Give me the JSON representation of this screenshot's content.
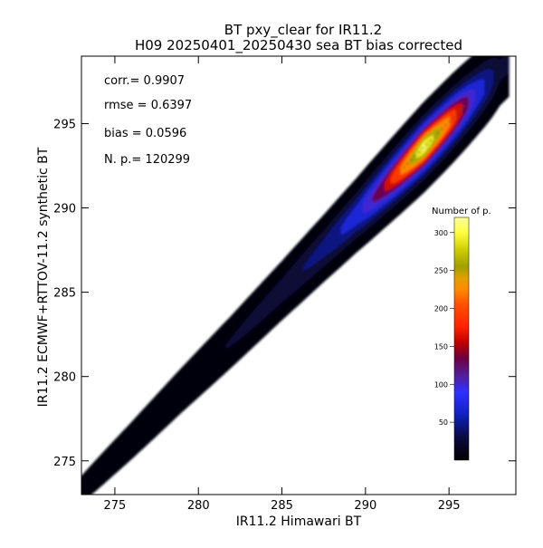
{
  "chart_data": {
    "type": "heatmap",
    "title": "BT pxy_clear for IR11.2",
    "subtitle": "H09 20250401_20250430 sea BT bias corrected",
    "xlabel": "IR11.2 Himawari BT",
    "ylabel": "IR11.2 ECMWF+RTTOV-11.2 synthetic BT",
    "xlim": [
      273,
      299
    ],
    "ylim": [
      273,
      299
    ],
    "x_ticks": [
      "275",
      "280",
      "285",
      "290",
      "295"
    ],
    "y_ticks": [
      "275",
      "280",
      "285",
      "290",
      "295"
    ],
    "stats": [
      {
        "label": "corr.=",
        "value": "0.9907"
      },
      {
        "label": "rmse =",
        "value": "0.6397"
      },
      {
        "label": "bias =",
        "value": "0.0596"
      },
      {
        "label": "N. p.=",
        "value": "120299"
      }
    ],
    "density": {
      "description_of_mapping": "x = Himawari BT, y = synthetic BT, density ridge along y ≈ x",
      "ridge_points": [
        {
          "x": 273.0,
          "y": 273.3,
          "count": 3
        },
        {
          "x": 276.0,
          "y": 276.2,
          "count": 6
        },
        {
          "x": 279.0,
          "y": 279.2,
          "count": 10
        },
        {
          "x": 282.0,
          "y": 282.1,
          "count": 16
        },
        {
          "x": 285.0,
          "y": 285.1,
          "count": 25
        },
        {
          "x": 287.5,
          "y": 287.6,
          "count": 45
        },
        {
          "x": 289.5,
          "y": 289.6,
          "count": 80
        },
        {
          "x": 291.0,
          "y": 291.1,
          "count": 150
        },
        {
          "x": 292.5,
          "y": 292.6,
          "count": 250
        },
        {
          "x": 293.5,
          "y": 293.6,
          "count": 320
        },
        {
          "x": 295.0,
          "y": 295.1,
          "count": 230
        },
        {
          "x": 296.5,
          "y": 296.6,
          "count": 100
        },
        {
          "x": 298.0,
          "y": 298.1,
          "count": 20
        }
      ]
    },
    "colorbar": {
      "title": "Number of p.",
      "range": [
        0,
        320
      ],
      "ticks": [
        "50",
        "100",
        "150",
        "200",
        "250",
        "300"
      ],
      "tick_values": [
        50,
        100,
        150,
        200,
        250,
        300
      ],
      "stops": [
        {
          "v": 0,
          "color": "#000000"
        },
        {
          "v": 30,
          "color": "#0a0a40"
        },
        {
          "v": 60,
          "color": "#1020c0"
        },
        {
          "v": 90,
          "color": "#3030ff"
        },
        {
          "v": 110,
          "color": "#5020a0"
        },
        {
          "v": 135,
          "color": "#700040"
        },
        {
          "v": 155,
          "color": "#c00000"
        },
        {
          "v": 175,
          "color": "#ff2000"
        },
        {
          "v": 205,
          "color": "#ff5000"
        },
        {
          "v": 225,
          "color": "#ff8a00"
        },
        {
          "v": 240,
          "color": "#e0a000"
        },
        {
          "v": 255,
          "color": "#a0a000"
        },
        {
          "v": 275,
          "color": "#c8c800"
        },
        {
          "v": 300,
          "color": "#ffff40"
        },
        {
          "v": 320,
          "color": "#ffffa0"
        }
      ]
    }
  }
}
